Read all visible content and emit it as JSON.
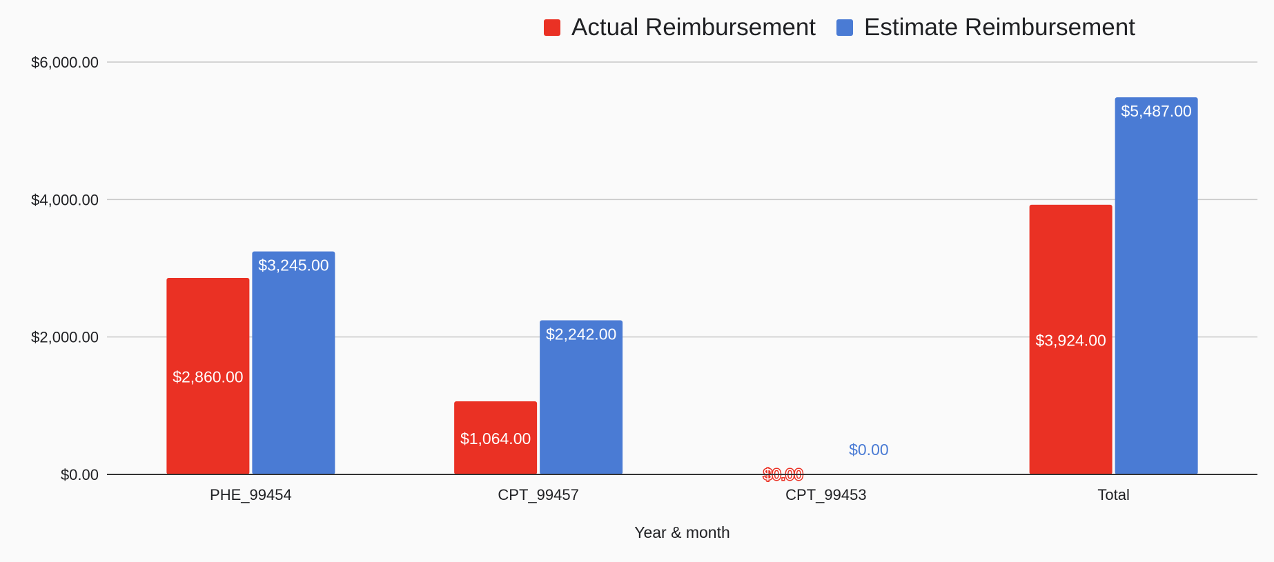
{
  "chart_data": {
    "type": "bar",
    "title": "",
    "xlabel": "Year & month",
    "ylabel": "",
    "categories": [
      "PHE_99454",
      "CPT_99457",
      "CPT_99453",
      "Total"
    ],
    "series": [
      {
        "name": "Actual Reimbursement",
        "color": "#ea3124",
        "values": [
          2860,
          1064,
          0,
          3924
        ],
        "labels": [
          "$2,860.00",
          "$1,064.00",
          "$0.00",
          "$3,924.00"
        ]
      },
      {
        "name": "Estimate Reimbursement",
        "color": "#4a7bd4",
        "values": [
          3245,
          2242,
          0,
          5487
        ],
        "labels": [
          "$3,245.00",
          "$2,242.00",
          "$0.00",
          "$5,487.00"
        ]
      }
    ],
    "ylim": [
      0,
      6000
    ],
    "yticks": [
      0,
      2000,
      4000,
      6000
    ],
    "ytick_labels": [
      "$0.00",
      "$2,000.00",
      "$4,000.00",
      "$6,000.00"
    ],
    "grid": true,
    "legend_position": "top"
  }
}
